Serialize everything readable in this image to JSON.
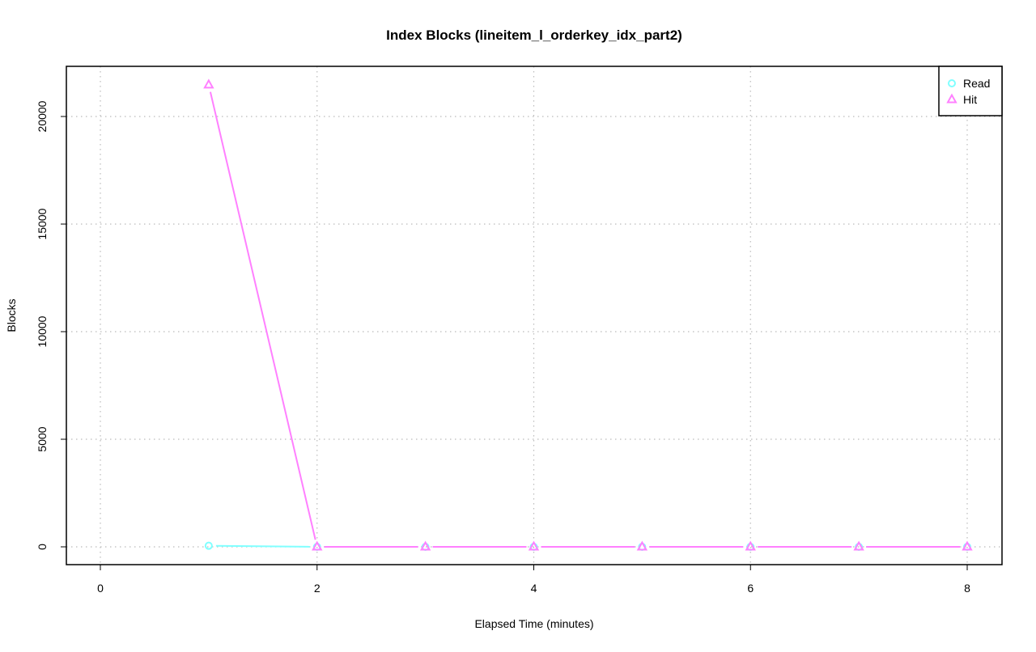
{
  "chart_data": {
    "type": "line",
    "title": "Index Blocks (lineitem_l_orderkey_idx_part2)",
    "xlabel": "Elapsed Time (minutes)",
    "ylabel": "Blocks",
    "xlim": [
      0,
      8
    ],
    "ylim": [
      0,
      20000
    ],
    "xticks": [
      0,
      2,
      4,
      6,
      8
    ],
    "yticks": [
      0,
      5000,
      10000,
      15000,
      20000
    ],
    "grid": true,
    "legend_position": "top-right",
    "x": [
      1,
      2,
      3,
      4,
      5,
      6,
      7,
      8
    ],
    "series": [
      {
        "name": "Read",
        "color": "#80ffff",
        "marker": "circle",
        "values": [
          50,
          0,
          0,
          0,
          0,
          0,
          0,
          0
        ]
      },
      {
        "name": "Hit",
        "color": "#ff80ff",
        "marker": "triangle",
        "values": [
          21470,
          0,
          0,
          0,
          0,
          0,
          0,
          0
        ]
      }
    ]
  }
}
